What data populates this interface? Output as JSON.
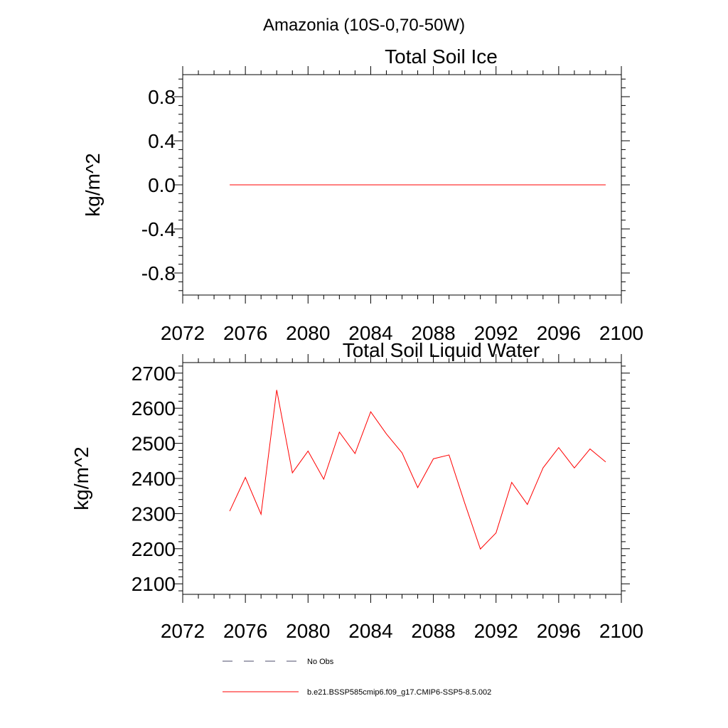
{
  "figure": {
    "title": "Amazonia (10S-0,70-50W)"
  },
  "chart_data": [
    {
      "type": "line",
      "title": "Total Soil Ice",
      "xlabel": "",
      "ylabel": "kg/m^2",
      "xlim": [
        2072,
        2100
      ],
      "ylim": [
        -1.0,
        1.0
      ],
      "x_ticks": [
        2072,
        2076,
        2080,
        2084,
        2088,
        2092,
        2096,
        2100
      ],
      "y_ticks": [
        -0.8,
        -0.4,
        0.0,
        0.4,
        0.8
      ],
      "y_tick_labels": [
        "-0.8",
        "-0.4",
        "0.0",
        "0.4",
        "0.8"
      ],
      "x": [
        2075,
        2076,
        2077,
        2078,
        2079,
        2080,
        2081,
        2082,
        2083,
        2084,
        2085,
        2086,
        2087,
        2088,
        2089,
        2090,
        2091,
        2092,
        2093,
        2094,
        2095,
        2096,
        2097,
        2098,
        2099
      ],
      "series": [
        {
          "name": "b.e21.BSSP585cmip6.f09_g17.CMIP6-SSP5-8.5.002",
          "color": "#ff0000",
          "values": [
            0,
            0,
            0,
            0,
            0,
            0,
            0,
            0,
            0,
            0,
            0,
            0,
            0,
            0,
            0,
            0,
            0,
            0,
            0,
            0,
            0,
            0,
            0,
            0,
            0
          ]
        }
      ]
    },
    {
      "type": "line",
      "title": "Total Soil Liquid Water",
      "xlabel": "",
      "ylabel": "kg/m^2",
      "xlim": [
        2072,
        2100
      ],
      "ylim": [
        2070,
        2730
      ],
      "x_ticks": [
        2072,
        2076,
        2080,
        2084,
        2088,
        2092,
        2096,
        2100
      ],
      "y_ticks": [
        2100,
        2200,
        2300,
        2400,
        2500,
        2600,
        2700
      ],
      "y_tick_labels": [
        "2100",
        "2200",
        "2300",
        "2400",
        "2500",
        "2600",
        "2700"
      ],
      "x": [
        2075,
        2076,
        2077,
        2078,
        2079,
        2080,
        2081,
        2082,
        2083,
        2084,
        2085,
        2086,
        2087,
        2088,
        2089,
        2090,
        2091,
        2092,
        2093,
        2094,
        2095,
        2096,
        2097,
        2098,
        2099
      ],
      "series": [
        {
          "name": "b.e21.BSSP585cmip6.f09_g17.CMIP6-SSP5-8.5.002",
          "color": "#ff0000",
          "values": [
            2307,
            2403,
            2298,
            2652,
            2416,
            2478,
            2398,
            2532,
            2471,
            2590,
            2527,
            2473,
            2374,
            2456,
            2467,
            2330,
            2199,
            2245,
            2389,
            2326,
            2430,
            2488,
            2430,
            2484,
            2447
          ]
        }
      ]
    }
  ],
  "legend": {
    "placement": "bottom-center",
    "items": [
      {
        "label": "No Obs",
        "color": "#4d4d6b",
        "style": "dashed"
      },
      {
        "label": "b.e21.BSSP585cmip6.f09_g17.CMIP6-SSP5-8.5.002",
        "color": "#ff0000",
        "style": "solid"
      }
    ]
  }
}
